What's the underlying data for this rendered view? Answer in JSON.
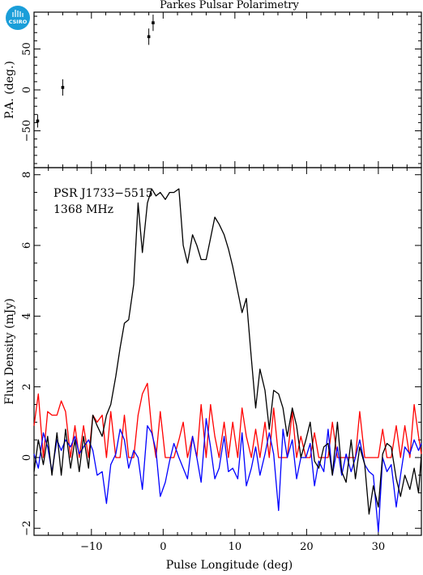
{
  "chart_data": [
    {
      "type": "scatter",
      "title": "Parkes Pulsar Polarimetry",
      "ylabel": "P.A. (deg.)",
      "xlim": [
        -18,
        36
      ],
      "ylim": [
        -95,
        95
      ],
      "yticks": [
        -50,
        0,
        50
      ],
      "points": [
        {
          "x": -17.5,
          "y": -38,
          "err": 8
        },
        {
          "x": -14.0,
          "y": 3,
          "err": 10
        },
        {
          "x": -2.0,
          "y": 65,
          "err": 10
        },
        {
          "x": -1.4,
          "y": 82,
          "err": 10
        }
      ]
    },
    {
      "type": "line",
      "annotations": [
        "PSR J1733−5515",
        "1368 MHz"
      ],
      "xlabel": "Pulse Longitude (deg)",
      "ylabel": "Flux Density (mJy)",
      "xlim": [
        -18,
        36
      ],
      "ylim": [
        -2.2,
        8.2
      ],
      "xticks": [
        -10,
        0,
        10,
        20,
        30
      ],
      "yticks": [
        -2,
        0,
        2,
        4,
        6,
        8
      ],
      "series": [
        {
          "color": "#000000",
          "x": [
            -18,
            -17.4,
            -16.7,
            -16.1,
            -15.5,
            -14.8,
            -14.2,
            -13.6,
            -12.9,
            -12.3,
            -11.7,
            -11.1,
            -10.4,
            -9.8,
            -9.2,
            -8.5,
            -7.9,
            -7.3,
            -6.6,
            -6.0,
            -5.4,
            -4.8,
            -4.1,
            -3.5,
            -2.9,
            -2.2,
            -1.6,
            -1.0,
            -0.4,
            0.3,
            0.9,
            1.5,
            2.2,
            2.8,
            3.4,
            4.1,
            4.7,
            5.3,
            6.0,
            6.6,
            7.2,
            7.8,
            8.5,
            9.1,
            9.7,
            10.4,
            11.0,
            11.6,
            12.3,
            12.9,
            13.5,
            14.2,
            14.8,
            15.4,
            16.1,
            16.7,
            17.3,
            18.0,
            18.6,
            19.2,
            19.9,
            20.5,
            21.1,
            21.7,
            22.4,
            23.0,
            23.6,
            24.3,
            24.9,
            25.5,
            26.2,
            26.8,
            27.4,
            28.1,
            28.7,
            29.3,
            30.0,
            30.6,
            31.2,
            31.8,
            32.5,
            33.1,
            33.7,
            34.4,
            35.0,
            35.6,
            36.0
          ],
          "y": [
            -0.4,
            0.5,
            -0.2,
            0.6,
            -0.5,
            0.7,
            -0.5,
            0.8,
            -0.3,
            0.5,
            -0.4,
            0.6,
            -0.3,
            1.2,
            0.9,
            0.6,
            1.2,
            1.5,
            2.3,
            3.1,
            3.8,
            3.9,
            4.9,
            7.2,
            5.8,
            7.2,
            7.6,
            7.4,
            7.5,
            7.3,
            7.5,
            7.5,
            7.6,
            6.0,
            5.5,
            6.3,
            6.0,
            5.6,
            5.6,
            6.2,
            6.8,
            6.6,
            6.3,
            5.9,
            5.4,
            4.7,
            4.1,
            4.5,
            2.8,
            1.4,
            2.5,
            1.9,
            0.8,
            1.9,
            1.8,
            1.4,
            0.6,
            1.4,
            0.9,
            0.0,
            0.5,
            1.0,
            -0.1,
            -0.3,
            0.3,
            0.4,
            -0.5,
            1.0,
            -0.4,
            -0.7,
            0.5,
            -0.6,
            0.3,
            -0.2,
            -1.6,
            -0.8,
            -1.4,
            0.1,
            0.4,
            0.3,
            -0.6,
            -1.1,
            -0.5,
            -0.9,
            -0.3,
            -1.0,
            0.1
          ]
        },
        {
          "color": "#ff0000",
          "x": [
            -18,
            -17.4,
            -16.7,
            -16.1,
            -15.5,
            -14.8,
            -14.2,
            -13.6,
            -12.9,
            -12.3,
            -11.7,
            -11.1,
            -10.4,
            -9.8,
            -9.2,
            -8.5,
            -7.9,
            -7.3,
            -6.6,
            -6.0,
            -5.4,
            -4.8,
            -4.1,
            -3.5,
            -2.9,
            -2.2,
            -1.6,
            -1.0,
            -0.4,
            0.3,
            0.9,
            1.5,
            2.2,
            2.8,
            3.4,
            4.1,
            4.7,
            5.3,
            6.0,
            6.6,
            7.2,
            7.8,
            8.5,
            9.1,
            9.7,
            10.4,
            11.0,
            11.6,
            12.3,
            12.9,
            13.5,
            14.2,
            14.8,
            15.4,
            16.1,
            16.7,
            17.3,
            18.0,
            18.6,
            19.2,
            19.9,
            20.5,
            21.1,
            21.7,
            22.4,
            23.0,
            23.6,
            24.3,
            24.9,
            25.5,
            26.2,
            26.8,
            27.4,
            28.1,
            28.7,
            29.3,
            30.0,
            30.6,
            31.2,
            31.8,
            32.5,
            33.1,
            33.7,
            34.4,
            35.0,
            35.6,
            36.0
          ],
          "y": [
            0.9,
            1.8,
            0.0,
            1.3,
            1.2,
            1.2,
            1.6,
            1.3,
            0.0,
            0.9,
            0.0,
            0.9,
            0.0,
            1.2,
            1.0,
            1.2,
            0.0,
            1.3,
            0.0,
            0.0,
            1.2,
            0.0,
            0.0,
            1.2,
            1.8,
            2.1,
            0.8,
            0.0,
            1.3,
            0.0,
            0.0,
            0.0,
            0.5,
            1.0,
            0.0,
            0.6,
            0.0,
            1.5,
            0.0,
            1.5,
            0.6,
            0.0,
            1.0,
            0.0,
            1.0,
            0.0,
            1.4,
            0.6,
            0.0,
            0.8,
            0.0,
            1.0,
            0.0,
            1.4,
            0.0,
            0.0,
            0.0,
            1.3,
            0.0,
            0.6,
            0.0,
            0.0,
            0.7,
            0.0,
            0.0,
            0.0,
            1.0,
            0.0,
            0.0,
            0.0,
            0.0,
            0.0,
            1.3,
            0.0,
            0.0,
            0.0,
            0.0,
            0.8,
            0.0,
            0.0,
            0.9,
            0.0,
            0.9,
            0.0,
            1.5,
            0.6,
            0.1
          ]
        },
        {
          "color": "#0000ff",
          "x": [
            -18,
            -17.4,
            -16.7,
            -16.1,
            -15.5,
            -14.8,
            -14.2,
            -13.6,
            -12.9,
            -12.3,
            -11.7,
            -11.1,
            -10.4,
            -9.8,
            -9.2,
            -8.5,
            -7.9,
            -7.3,
            -6.6,
            -6.0,
            -5.4,
            -4.8,
            -4.1,
            -3.5,
            -2.9,
            -2.2,
            -1.6,
            -1.0,
            -0.4,
            0.3,
            0.9,
            1.5,
            2.2,
            2.8,
            3.4,
            4.1,
            4.7,
            5.3,
            6.0,
            6.6,
            7.2,
            7.8,
            8.5,
            9.1,
            9.7,
            10.4,
            11.0,
            11.6,
            12.3,
            12.9,
            13.5,
            14.2,
            14.8,
            15.4,
            16.1,
            16.7,
            17.3,
            18.0,
            18.6,
            19.2,
            19.9,
            20.5,
            21.1,
            21.7,
            22.4,
            23.0,
            23.6,
            24.3,
            24.9,
            25.5,
            26.2,
            26.8,
            27.4,
            28.1,
            28.7,
            29.3,
            30.0,
            30.6,
            31.2,
            31.8,
            32.5,
            33.1,
            33.7,
            34.4,
            35.0,
            35.6,
            36.0
          ],
          "y": [
            0.1,
            -0.3,
            0.7,
            0.3,
            -0.4,
            0.5,
            0.2,
            0.5,
            0.3,
            0.6,
            0.1,
            0.3,
            0.5,
            0.2,
            -0.5,
            -0.4,
            -1.3,
            -0.2,
            0.1,
            0.8,
            0.5,
            -0.3,
            0.2,
            0.0,
            -0.9,
            0.9,
            0.7,
            0.2,
            -1.1,
            -0.7,
            -0.1,
            0.4,
            0.0,
            -0.3,
            -0.6,
            0.6,
            0.0,
            -0.7,
            1.1,
            0.3,
            -0.6,
            -0.3,
            0.6,
            -0.4,
            -0.3,
            -0.6,
            0.7,
            -0.8,
            -0.3,
            0.3,
            -0.5,
            0.1,
            0.7,
            0.1,
            -1.5,
            0.8,
            0.0,
            0.5,
            -0.6,
            0.0,
            0.0,
            0.4,
            -0.8,
            -0.1,
            -0.4,
            0.8,
            -0.5,
            0.3,
            -0.5,
            0.1,
            -0.4,
            0.0,
            0.5,
            -0.2,
            -0.4,
            -0.5,
            -2.1,
            0.0,
            -0.4,
            -0.2,
            -1.4,
            -0.5,
            0.3,
            0.1,
            0.5,
            0.2,
            0.4
          ]
        }
      ]
    }
  ],
  "logo": {
    "text": "CSIRO",
    "color": "#1a9ed9"
  }
}
